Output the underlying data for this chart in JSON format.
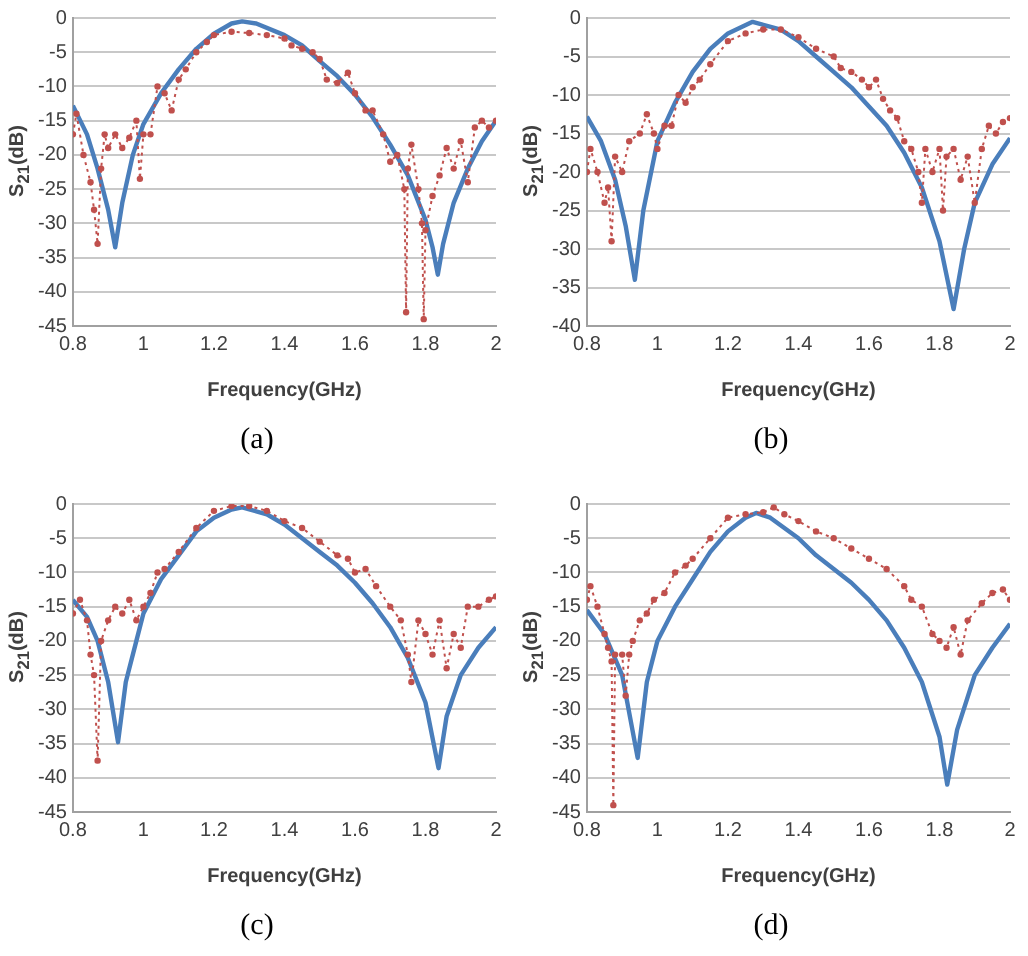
{
  "chart_data": [
    {
      "type": "line",
      "xlabel": "Frequency(GHz)",
      "ylabel": "S$_{21}$(dB)",
      "annotations": [
        "(a)"
      ],
      "xlim": [
        0.8,
        2
      ],
      "xticks": [
        0.8,
        1,
        1.2,
        1.4,
        1.6,
        1.8,
        2
      ],
      "ylim": [
        -45,
        0
      ],
      "yticks": [
        -45,
        -40,
        -35,
        -30,
        -25,
        -20,
        -15,
        -10,
        -5,
        0
      ],
      "grid": "y",
      "legend": false,
      "series": [
        {
          "color": "#4a7ebb",
          "marker": "none",
          "line_style": "solid",
          "x": [
            0.8,
            0.84,
            0.87,
            0.9,
            0.92,
            0.94,
            0.97,
            1.0,
            1.05,
            1.1,
            1.15,
            1.2,
            1.25,
            1.28,
            1.32,
            1.4,
            1.45,
            1.5,
            1.55,
            1.6,
            1.65,
            1.7,
            1.75,
            1.8,
            1.82,
            1.835,
            1.85,
            1.88,
            1.92,
            1.96,
            2.0
          ],
          "values": [
            -12.8,
            -17,
            -22,
            -28,
            -33.5,
            -27,
            -20,
            -15.5,
            -11,
            -7.5,
            -4.5,
            -2.3,
            -0.8,
            -0.5,
            -0.8,
            -2.5,
            -4,
            -6.3,
            -8.5,
            -11.2,
            -14.5,
            -18.5,
            -23,
            -29.5,
            -33.5,
            -37.5,
            -33,
            -27,
            -22,
            -18,
            -15
          ]
        },
        {
          "color": "#c0504d",
          "marker": "circle",
          "line_style": "dotted",
          "x": [
            0.8,
            0.81,
            0.83,
            0.85,
            0.86,
            0.87,
            0.88,
            0.89,
            0.9,
            0.92,
            0.94,
            0.96,
            0.98,
            0.99,
            1.0,
            1.02,
            1.04,
            1.06,
            1.08,
            1.1,
            1.12,
            1.15,
            1.18,
            1.2,
            1.25,
            1.3,
            1.35,
            1.4,
            1.42,
            1.45,
            1.48,
            1.5,
            1.52,
            1.55,
            1.58,
            1.6,
            1.63,
            1.65,
            1.68,
            1.7,
            1.72,
            1.74,
            1.745,
            1.75,
            1.76,
            1.78,
            1.79,
            1.795,
            1.8,
            1.82,
            1.84,
            1.86,
            1.88,
            1.9,
            1.92,
            1.94,
            1.96,
            1.98,
            2.0
          ],
          "values": [
            -17,
            -14,
            -20,
            -24,
            -28,
            -33,
            -22,
            -17,
            -19,
            -17,
            -19,
            -17.5,
            -15,
            -23.5,
            -17,
            -17,
            -10,
            -11,
            -13.5,
            -9,
            -7.5,
            -5,
            -3.5,
            -2.5,
            -2,
            -2.2,
            -2.5,
            -3,
            -4,
            -4.5,
            -5,
            -6,
            -9,
            -9.5,
            -8,
            -11,
            -13.5,
            -13.5,
            -17,
            -21,
            -20,
            -25,
            -43,
            -22,
            -18.5,
            -25,
            -30,
            -44,
            -31,
            -26,
            -23,
            -19,
            -22,
            -18,
            -24,
            -16,
            -15,
            -16,
            -15
          ]
        }
      ]
    },
    {
      "type": "line",
      "xlabel": "Frequency(GHz)",
      "ylabel": "S$_{21}$(dB)",
      "annotations": [
        "(b)"
      ],
      "xlim": [
        0.8,
        2
      ],
      "xticks": [
        0.8,
        1,
        1.2,
        1.4,
        1.6,
        1.8,
        2
      ],
      "ylim": [
        -40,
        0
      ],
      "yticks": [
        -40,
        -35,
        -30,
        -25,
        -20,
        -15,
        -10,
        -5,
        0
      ],
      "grid": "y",
      "legend": false,
      "series": [
        {
          "color": "#4a7ebb",
          "marker": "none",
          "line_style": "solid",
          "x": [
            0.8,
            0.84,
            0.88,
            0.91,
            0.936,
            0.96,
            1.0,
            1.05,
            1.1,
            1.15,
            1.2,
            1.27,
            1.35,
            1.4,
            1.45,
            1.5,
            1.55,
            1.6,
            1.65,
            1.7,
            1.75,
            1.8,
            1.84,
            1.87,
            1.9,
            1.95,
            2.0
          ],
          "values": [
            -12.8,
            -16,
            -21,
            -27,
            -34,
            -25,
            -16,
            -11,
            -7,
            -4,
            -2,
            -0.5,
            -1.5,
            -3,
            -5,
            -7,
            -9,
            -11.5,
            -14,
            -17.5,
            -22,
            -29,
            -37.8,
            -30,
            -24,
            -19,
            -15.6
          ]
        },
        {
          "color": "#c0504d",
          "marker": "circle",
          "line_style": "dotted",
          "x": [
            0.8,
            0.81,
            0.83,
            0.85,
            0.86,
            0.87,
            0.88,
            0.9,
            0.92,
            0.95,
            0.97,
            0.99,
            1.0,
            1.02,
            1.04,
            1.06,
            1.08,
            1.1,
            1.12,
            1.15,
            1.2,
            1.25,
            1.3,
            1.35,
            1.4,
            1.45,
            1.5,
            1.52,
            1.55,
            1.58,
            1.6,
            1.62,
            1.64,
            1.66,
            1.68,
            1.7,
            1.72,
            1.74,
            1.75,
            1.76,
            1.78,
            1.8,
            1.81,
            1.82,
            1.84,
            1.86,
            1.88,
            1.9,
            1.92,
            1.94,
            1.96,
            1.98,
            2.0
          ],
          "values": [
            -20,
            -17,
            -20,
            -24,
            -22,
            -29,
            -18,
            -20,
            -16,
            -15,
            -12.5,
            -15,
            -17,
            -14,
            -14,
            -10,
            -11,
            -9,
            -8,
            -6,
            -3,
            -2,
            -1.5,
            -1.5,
            -2.5,
            -4,
            -5,
            -6.5,
            -7,
            -8,
            -9,
            -8,
            -10.5,
            -12,
            -13,
            -16,
            -17,
            -20,
            -24,
            -17,
            -20,
            -17,
            -25,
            -18,
            -17,
            -21,
            -18,
            -24,
            -17,
            -14,
            -15,
            -13.5,
            -13
          ]
        }
      ]
    },
    {
      "type": "line",
      "xlabel": "Frequency(GHz)",
      "ylabel": "S$_{21}$(dB)",
      "annotations": [
        "(c)"
      ],
      "xlim": [
        0.8,
        2
      ],
      "xticks": [
        0.8,
        1,
        1.2,
        1.4,
        1.6,
        1.8,
        2
      ],
      "ylim": [
        -45,
        0
      ],
      "yticks": [
        -45,
        -40,
        -35,
        -30,
        -25,
        -20,
        -15,
        -10,
        -5,
        0
      ],
      "grid": "y",
      "legend": false,
      "series": [
        {
          "color": "#4a7ebb",
          "marker": "none",
          "line_style": "solid",
          "x": [
            0.8,
            0.84,
            0.87,
            0.9,
            0.928,
            0.95,
            0.98,
            1.0,
            1.05,
            1.1,
            1.15,
            1.2,
            1.25,
            1.28,
            1.35,
            1.4,
            1.45,
            1.5,
            1.55,
            1.6,
            1.65,
            1.7,
            1.75,
            1.8,
            1.837,
            1.86,
            1.9,
            1.95,
            2.0
          ],
          "values": [
            -14,
            -16.5,
            -20,
            -26,
            -34.8,
            -26,
            -20,
            -16,
            -11,
            -7.5,
            -4,
            -2,
            -0.8,
            -0.5,
            -1.5,
            -3,
            -5,
            -7,
            -9,
            -11.5,
            -14.5,
            -18,
            -22.5,
            -29,
            -38.6,
            -31,
            -25,
            -21,
            -18
          ]
        },
        {
          "color": "#c0504d",
          "marker": "circle",
          "line_style": "dotted",
          "x": [
            0.8,
            0.82,
            0.84,
            0.85,
            0.86,
            0.87,
            0.88,
            0.9,
            0.92,
            0.94,
            0.96,
            0.98,
            1.0,
            1.02,
            1.04,
            1.06,
            1.1,
            1.15,
            1.2,
            1.25,
            1.3,
            1.35,
            1.4,
            1.45,
            1.5,
            1.55,
            1.58,
            1.6,
            1.63,
            1.66,
            1.7,
            1.73,
            1.75,
            1.76,
            1.78,
            1.8,
            1.82,
            1.84,
            1.86,
            1.88,
            1.9,
            1.92,
            1.95,
            1.98,
            2.0
          ],
          "values": [
            -16,
            -14,
            -17,
            -22,
            -25,
            -37.5,
            -20,
            -17,
            -15,
            -16,
            -14,
            -17,
            -15,
            -13,
            -10,
            -9.5,
            -7,
            -3.5,
            -1,
            -0.3,
            -0.3,
            -1,
            -2.5,
            -3.5,
            -5.5,
            -7.5,
            -8,
            -10,
            -9.5,
            -12,
            -15,
            -17,
            -22,
            -26,
            -17,
            -19,
            -22,
            -17,
            -24,
            -19,
            -21,
            -15,
            -15,
            -14,
            -13.5
          ]
        }
      ]
    },
    {
      "type": "line",
      "xlabel": "Frequency(GHz)",
      "ylabel": "S$_{21}$(dB)",
      "annotations": [
        "(d)"
      ],
      "xlim": [
        0.8,
        2
      ],
      "xticks": [
        0.8,
        1,
        1.2,
        1.4,
        1.6,
        1.8,
        2
      ],
      "ylim": [
        -45,
        0
      ],
      "yticks": [
        -45,
        -40,
        -35,
        -30,
        -25,
        -20,
        -15,
        -10,
        -5,
        0
      ],
      "grid": "y",
      "legend": false,
      "series": [
        {
          "color": "#4a7ebb",
          "marker": "none",
          "line_style": "solid",
          "x": [
            0.8,
            0.85,
            0.9,
            0.944,
            0.97,
            1.0,
            1.05,
            1.1,
            1.15,
            1.2,
            1.25,
            1.28,
            1.32,
            1.4,
            1.45,
            1.5,
            1.55,
            1.6,
            1.65,
            1.7,
            1.75,
            1.8,
            1.822,
            1.85,
            1.9,
            1.95,
            2.0
          ],
          "values": [
            -15.5,
            -19,
            -25,
            -37.1,
            -26,
            -20,
            -15,
            -11,
            -7,
            -4,
            -2,
            -1.3,
            -2,
            -5,
            -7.5,
            -9.5,
            -11.5,
            -14,
            -17,
            -21,
            -26,
            -34,
            -41,
            -33,
            -25,
            -21,
            -17.5
          ]
        },
        {
          "color": "#c0504d",
          "marker": "circle",
          "line_style": "dotted",
          "x": [
            0.8,
            0.81,
            0.83,
            0.85,
            0.86,
            0.87,
            0.875,
            0.88,
            0.9,
            0.91,
            0.92,
            0.93,
            0.95,
            0.97,
            0.99,
            1.02,
            1.05,
            1.08,
            1.1,
            1.15,
            1.2,
            1.25,
            1.3,
            1.33,
            1.36,
            1.4,
            1.45,
            1.5,
            1.55,
            1.6,
            1.65,
            1.7,
            1.72,
            1.75,
            1.78,
            1.8,
            1.82,
            1.84,
            1.86,
            1.88,
            1.92,
            1.95,
            1.98,
            2.0
          ],
          "values": [
            -14,
            -12,
            -15,
            -19,
            -21,
            -23,
            -44,
            -22,
            -22,
            -28,
            -22,
            -20,
            -17,
            -16,
            -14,
            -13,
            -10,
            -9,
            -8,
            -5,
            -2,
            -1.5,
            -1.2,
            -0.5,
            -1.5,
            -2.5,
            -4,
            -5,
            -6.5,
            -8,
            -9.5,
            -12,
            -14,
            -15,
            -19,
            -20,
            -21,
            -18,
            -22,
            -17,
            -14.5,
            -13,
            -12.5,
            -14
          ]
        }
      ]
    }
  ]
}
